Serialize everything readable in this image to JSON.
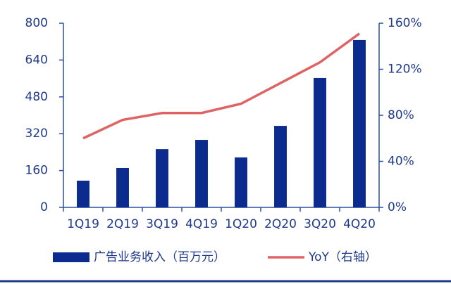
{
  "chart_data": {
    "type": "bar",
    "categories": [
      "1Q19",
      "2Q19",
      "3Q19",
      "4Q19",
      "1Q20",
      "2Q20",
      "3Q20",
      "4Q20"
    ],
    "series": [
      {
        "name": "广告业务收入（百万元）",
        "type": "bar",
        "color": "#0b2b8f",
        "values": [
          116,
          171,
          253,
          293,
          217,
          354,
          562,
          727
        ]
      },
      {
        "name": "YoY（右轴）",
        "type": "line",
        "axis": "y2",
        "color": "#e06363",
        "values": [
          60,
          76,
          82,
          82,
          90,
          108,
          126,
          151
        ]
      }
    ],
    "ylim": [
      0,
      800
    ],
    "yticks": [
      0,
      160,
      320,
      480,
      640,
      800
    ],
    "y2lim": [
      0,
      160
    ],
    "y2ticks": [
      {
        "value": 0,
        "label": "0%"
      },
      {
        "value": 40,
        "label": "40%"
      },
      {
        "value": 80,
        "label": "80%"
      },
      {
        "value": 120,
        "label": "120%"
      },
      {
        "value": 160,
        "label": "160%"
      }
    ],
    "legend": "bottom"
  }
}
